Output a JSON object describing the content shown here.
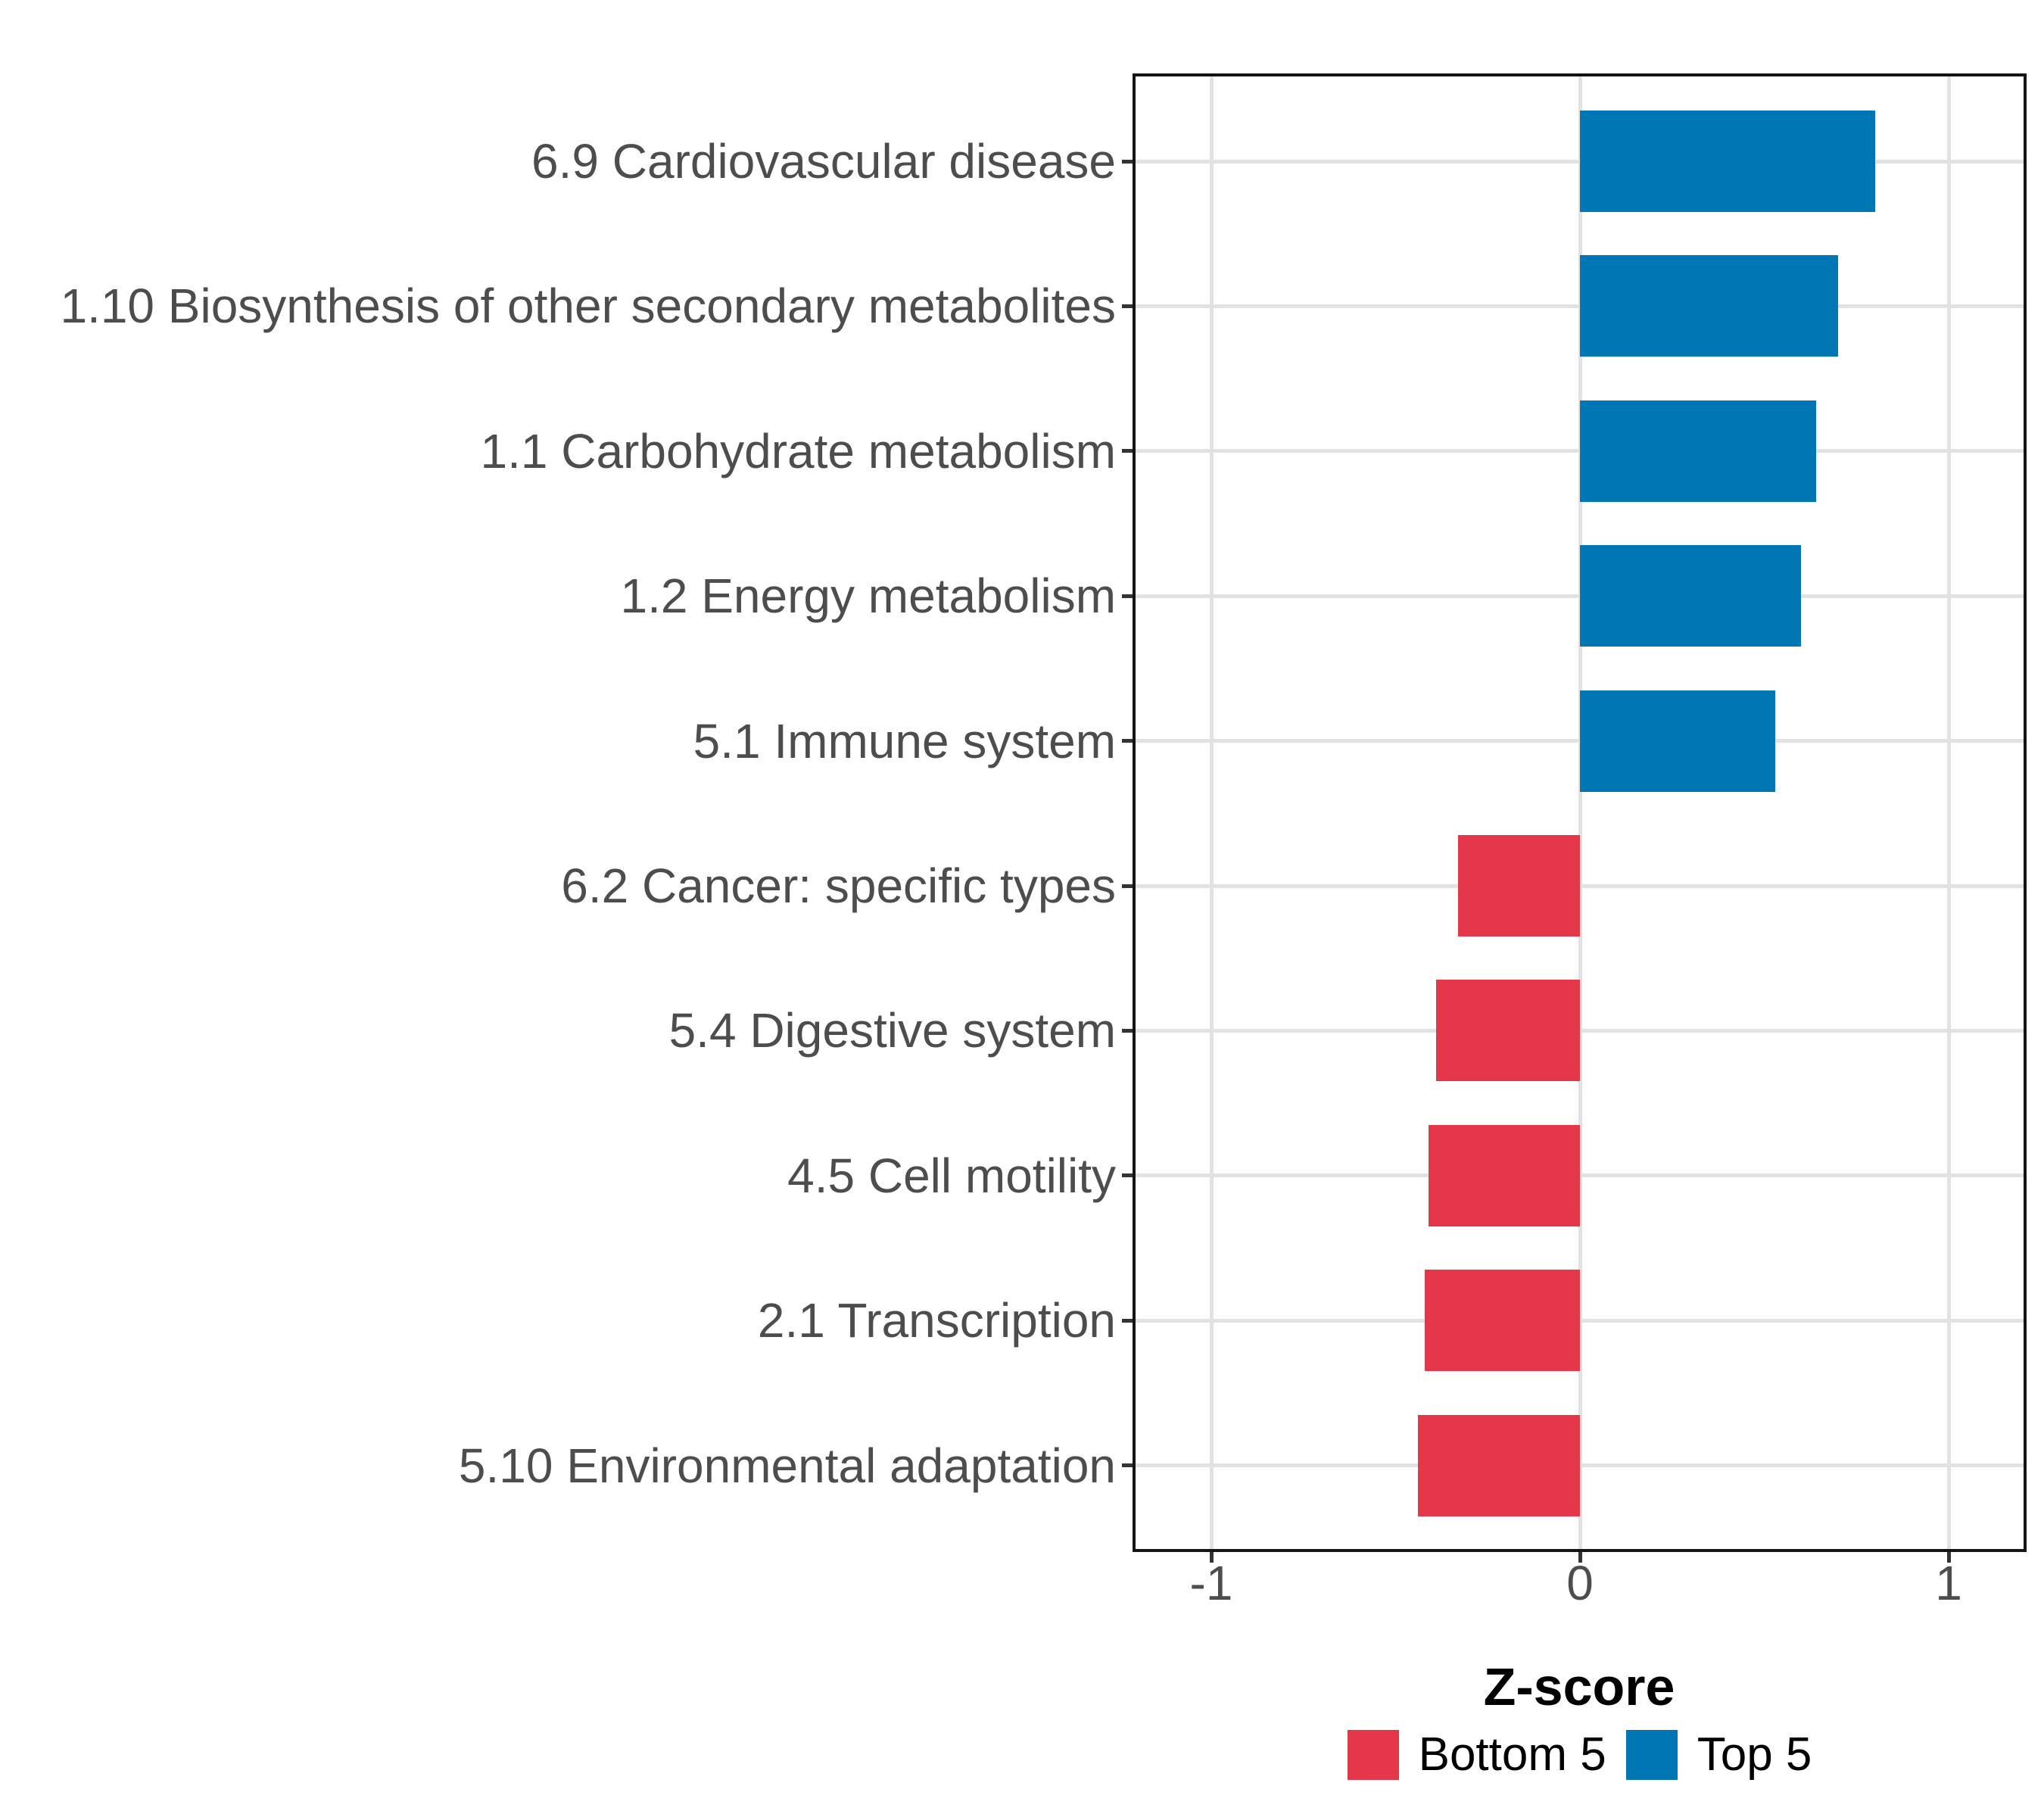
{
  "chart_data": {
    "type": "bar",
    "orientation": "horizontal",
    "title": "",
    "xlabel": "Z-score",
    "ylabel": "",
    "xlim": [
      -1.2,
      1.2
    ],
    "grid": "major-only",
    "legend_position": "bottom",
    "x_ticks": [
      {
        "value": -1,
        "label": "-1"
      },
      {
        "value": 0,
        "label": "0"
      },
      {
        "value": 1,
        "label": "1"
      }
    ],
    "categories": [
      "6.9 Cardiovascular disease",
      "1.10 Biosynthesis of other secondary metabolites",
      "1.1 Carbohydrate metabolism",
      "1.2 Energy metabolism",
      "5.1 Immune system",
      "6.2 Cancer: specific types",
      "5.4 Digestive system",
      "4.5 Cell motility",
      "2.1 Transcription",
      "5.10 Environmental adaptation"
    ],
    "values": [
      0.8,
      0.7,
      0.64,
      0.6,
      0.53,
      -0.33,
      -0.39,
      -0.41,
      -0.42,
      -0.44
    ],
    "series": [
      {
        "name": "Bottom 5",
        "color": "#E4384A",
        "applies_to": "negative values"
      },
      {
        "name": "Top 5",
        "color": "#0077B5",
        "applies_to": "positive values"
      }
    ],
    "legend_entries": [
      {
        "label": "Bottom 5",
        "color": "#E4384A"
      },
      {
        "label": "Top 5",
        "color": "#0077B5"
      }
    ]
  },
  "style": {
    "background": "#FFFFFF",
    "bottom5_color": "#E4384A",
    "top5_color": "#0077B5",
    "grid_color": "#E2E2E2",
    "panel_border_color": "#141414",
    "axis_text_color": "#4D4D4D",
    "axis_title_color": "#000000",
    "legend_text_color": "#000000"
  }
}
